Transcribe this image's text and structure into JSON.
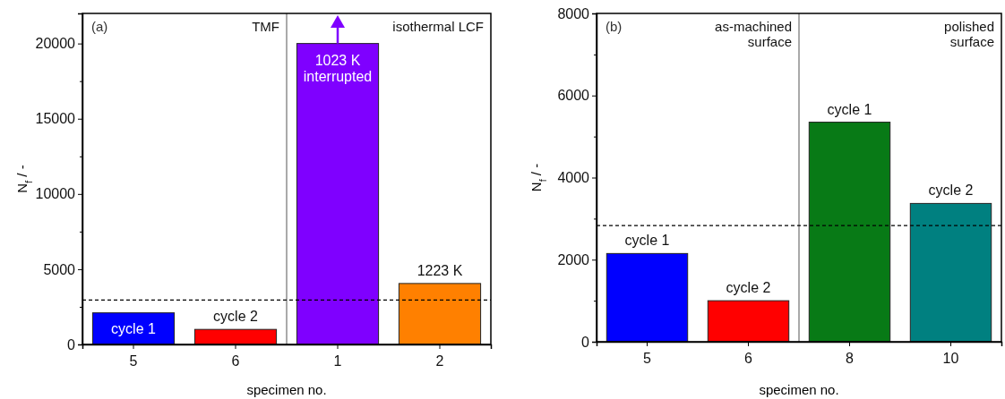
{
  "chart_data": [
    {
      "type": "bar",
      "xlabel": "specimen no.",
      "ylabel": "N$_{f}$ / -",
      "categories": [
        "5",
        "6",
        "1",
        "2"
      ],
      "values": [
        2100,
        1000,
        20000,
        4050
      ],
      "colors": [
        "#0000ff",
        "#ff0000",
        "#7f00ff",
        "#ff8000"
      ],
      "ylim": [
        0,
        22000
      ],
      "yticks": [
        0,
        {
          "value": 2500,
          "label": null
        },
        5000,
        {
          "value": 7500,
          "label": null
        },
        10000,
        {
          "value": 12500,
          "label": null
        },
        15000,
        {
          "value": 17500,
          "label": null
        },
        20000
      ],
      "ref_lines": [
        {
          "axis": "y",
          "value": 2950,
          "color": "#000000",
          "line_style": "dashed"
        }
      ],
      "annotations": [
        "(a)",
        "TMF",
        "isothermal LCF",
        "cycle 1",
        "1023 K\ninterrupted",
        {
          "text": "cycle 2",
          "x": "6",
          "y": 1000
        },
        {
          "text": "1223 K",
          "x": "2",
          "y": 4050
        }
      ],
      "grid": false
    },
    {
      "type": "bar",
      "xlabel": "specimen no.",
      "ylabel": "N$_{f}$ / -",
      "categories": [
        "5",
        "6",
        "8",
        "10"
      ],
      "values": [
        2150,
        1000,
        5350,
        3370
      ],
      "colors": [
        "#0000ff",
        "#ff0000",
        "#087a16",
        "#008080"
      ],
      "ylim": [
        0,
        8000
      ],
      "yticks": [
        0,
        {
          "value": 1000,
          "label": null
        },
        2000,
        {
          "value": 3000,
          "label": null
        },
        4000,
        {
          "value": 5000,
          "label": null
        },
        6000,
        {
          "value": 7000,
          "label": null
        },
        8000
      ],
      "ref_lines": [
        {
          "axis": "y",
          "value": 2830,
          "color": "#000000",
          "line_style": "dashed"
        }
      ],
      "annotations": [
        "(b)",
        "as-machined\nsurface",
        "polished\nsurface",
        {
          "text": "cycle 1",
          "x": "5",
          "y": 2150
        },
        {
          "text": "cycle 2",
          "x": "6",
          "y": 1000
        },
        {
          "text": "cycle 1",
          "x": "8",
          "y": 5350
        },
        {
          "text": "cycle 2",
          "x": "10",
          "y": 3370
        }
      ],
      "grid": false
    }
  ]
}
